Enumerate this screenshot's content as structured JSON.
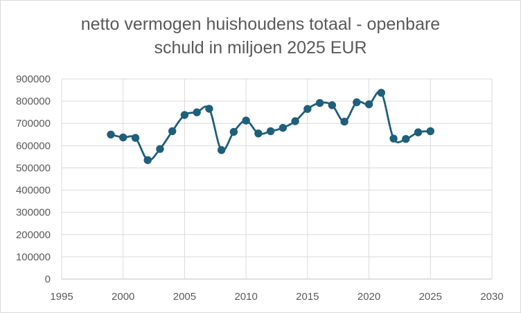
{
  "chart_data": {
    "type": "line",
    "title_lines": [
      "netto vermogen huishoudens totaal - openbare",
      "schuld in miljoen 2025 EUR"
    ],
    "xlabel": "",
    "ylabel": "",
    "xlim": [
      1995,
      2030
    ],
    "ylim": [
      0,
      900000
    ],
    "x_ticks": [
      1995,
      2000,
      2005,
      2010,
      2015,
      2020,
      2025,
      2030
    ],
    "y_ticks": [
      0,
      100000,
      200000,
      300000,
      400000,
      500000,
      600000,
      700000,
      800000,
      900000
    ],
    "grid": true,
    "legend": "none",
    "series": [
      {
        "color": "#1f5f7a",
        "x": [
          1999,
          2000,
          2001,
          2002,
          2003,
          2004,
          2005,
          2006,
          2007,
          2008,
          2009,
          2010,
          2011,
          2012,
          2013,
          2014,
          2015,
          2016,
          2017,
          2018,
          2019,
          2020,
          2021,
          2022,
          2023,
          2024,
          2025
        ],
        "y": [
          650000,
          637000,
          635000,
          535000,
          585000,
          665000,
          738000,
          750000,
          766000,
          580000,
          662000,
          713000,
          655000,
          665000,
          680000,
          710000,
          765000,
          792000,
          782000,
          708000,
          795000,
          786000,
          838000,
          632000,
          630000,
          660000,
          665000
        ]
      }
    ]
  }
}
